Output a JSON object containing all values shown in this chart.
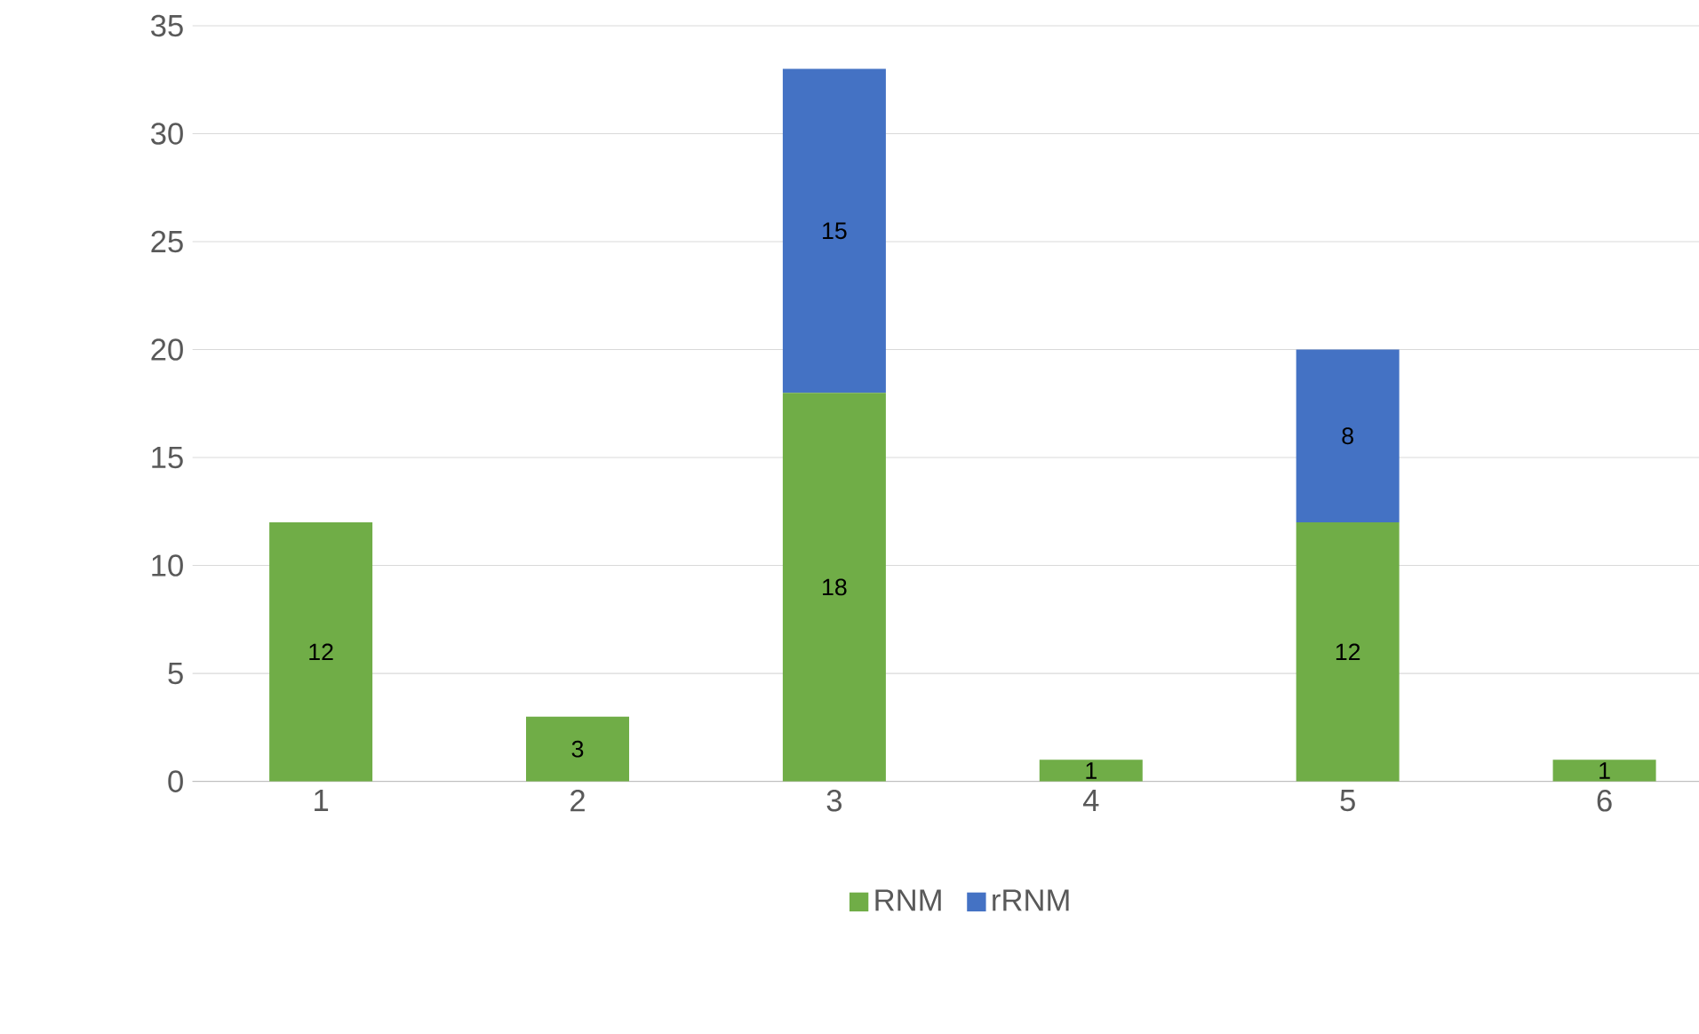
{
  "chart_data": {
    "type": "bar",
    "stacked": true,
    "categories": [
      "1",
      "2",
      "3",
      "4",
      "5",
      "6"
    ],
    "series": [
      {
        "name": "RNM",
        "color": "#70ad47",
        "values": [
          12,
          3,
          18,
          1,
          12,
          1
        ]
      },
      {
        "name": "rRNM",
        "color": "#4472c4",
        "values": [
          null,
          null,
          15,
          null,
          8,
          null
        ]
      }
    ],
    "ylim": [
      0,
      35
    ],
    "yticks": [
      0,
      5,
      10,
      15,
      20,
      25,
      30,
      35
    ],
    "grid": "y",
    "legend": "bottom",
    "data_labels": true
  }
}
